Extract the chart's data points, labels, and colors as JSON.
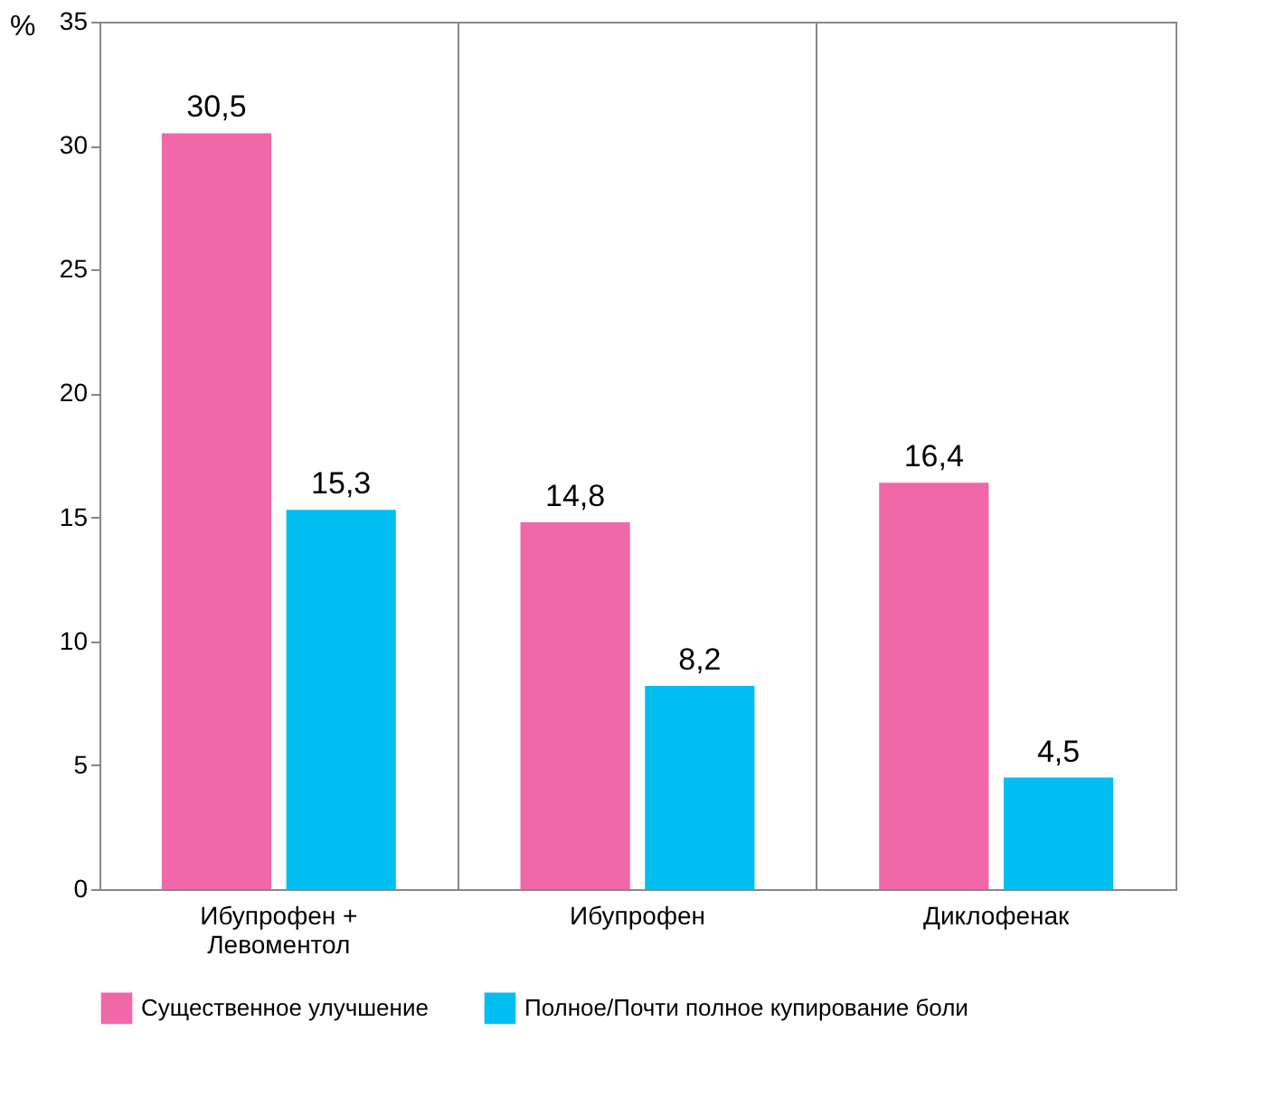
{
  "chart_data": {
    "type": "bar",
    "ylabel": "%",
    "categories": [
      "Ибупрофен +\nЛевоментол",
      "Ибупрофен",
      "Диклофенак"
    ],
    "series": [
      {
        "name": "Существенное улучшение",
        "color": "#f068a8",
        "values": [
          30.5,
          14.8,
          16.4
        ],
        "value_labels": [
          "30,5",
          "14,8",
          "16,4"
        ]
      },
      {
        "name": "Полное/Почти полное купирование боли",
        "color": "#00bff0",
        "values": [
          15.3,
          8.2,
          4.5
        ],
        "value_labels": [
          "15,3",
          "8,2",
          "4,5"
        ]
      }
    ],
    "ylim": [
      0,
      35
    ],
    "yticks": [
      0,
      5,
      10,
      15,
      20,
      25,
      30,
      35
    ],
    "grid": "x",
    "legend": "bottom"
  }
}
